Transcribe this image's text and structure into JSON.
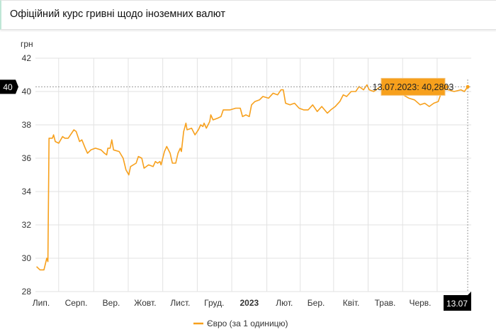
{
  "header": {
    "title": "Офіційний курс гривні щодо іноземних валют"
  },
  "chart_data": {
    "type": "line",
    "ylabel": "грн",
    "ylim": [
      28,
      42
    ],
    "yticks": [
      28,
      30,
      32,
      34,
      36,
      38,
      40,
      42
    ],
    "x_unit": "days since 2022-07-01",
    "xticks": [
      {
        "day": 0,
        "label": "Лип."
      },
      {
        "day": 31,
        "label": "Серп."
      },
      {
        "day": 62,
        "label": "Вер."
      },
      {
        "day": 92,
        "label": "Жовт."
      },
      {
        "day": 123,
        "label": "Лист."
      },
      {
        "day": 153,
        "label": "Груд."
      },
      {
        "day": 184,
        "label": "2023",
        "bold": true
      },
      {
        "day": 215,
        "label": "Лют."
      },
      {
        "day": 243,
        "label": "Бер."
      },
      {
        "day": 274,
        "label": "Квіт."
      },
      {
        "day": 304,
        "label": "Трав."
      },
      {
        "day": 335,
        "label": "Черв."
      }
    ],
    "series": [
      {
        "name": "Євро (за 1 одиницю)",
        "color": "#f7a01c",
        "points": [
          [
            -4,
            29.5
          ],
          [
            -1,
            29.3
          ],
          [
            2.5,
            29.3
          ],
          [
            5,
            30.0
          ],
          [
            6,
            29.8
          ],
          [
            7,
            37.2
          ],
          [
            10,
            37.2
          ],
          [
            11,
            37.4
          ],
          [
            12.5,
            37.0
          ],
          [
            15.6,
            36.9
          ],
          [
            19,
            37.3
          ],
          [
            21,
            37.2
          ],
          [
            24,
            37.2
          ],
          [
            26,
            37.4
          ],
          [
            29,
            37.7
          ],
          [
            31,
            37.6
          ],
          [
            34,
            37.0
          ],
          [
            36,
            37.1
          ],
          [
            39,
            36.6
          ],
          [
            41,
            36.3
          ],
          [
            44,
            36.5
          ],
          [
            48,
            36.6
          ],
          [
            53,
            36.5
          ],
          [
            56,
            36.3
          ],
          [
            58,
            36.2
          ],
          [
            59,
            36.6
          ],
          [
            61,
            36.6
          ],
          [
            62.5,
            37.1
          ],
          [
            64,
            36.5
          ],
          [
            69,
            36.4
          ],
          [
            72.5,
            36.0
          ],
          [
            75,
            35.3
          ],
          [
            77.5,
            35.0
          ],
          [
            79,
            35.5
          ],
          [
            84,
            35.7
          ],
          [
            86,
            36.1
          ],
          [
            89,
            36.0
          ],
          [
            91,
            35.4
          ],
          [
            95,
            35.6
          ],
          [
            99,
            35.5
          ],
          [
            101,
            35.8
          ],
          [
            103,
            35.7
          ],
          [
            105,
            35.8
          ],
          [
            106,
            35.6
          ],
          [
            109,
            36.4
          ],
          [
            111,
            36.7
          ],
          [
            114,
            36.3
          ],
          [
            116,
            35.7
          ],
          [
            119,
            35.7
          ],
          [
            121,
            36.3
          ],
          [
            123,
            36.6
          ],
          [
            124,
            36.4
          ],
          [
            126,
            37.6
          ],
          [
            128,
            38.1
          ],
          [
            129,
            37.7
          ],
          [
            133,
            37.8
          ],
          [
            136,
            37.4
          ],
          [
            139,
            37.7
          ],
          [
            141,
            38.0
          ],
          [
            143,
            37.9
          ],
          [
            144,
            38.1
          ],
          [
            146,
            37.8
          ],
          [
            149,
            38.2
          ],
          [
            150,
            38.6
          ],
          [
            152,
            38.3
          ],
          [
            156,
            38.4
          ],
          [
            159,
            38.5
          ],
          [
            161,
            38.9
          ],
          [
            167,
            38.9
          ],
          [
            172,
            39.0
          ],
          [
            176,
            39.0
          ],
          [
            178,
            38.5
          ],
          [
            181,
            38.6
          ],
          [
            184,
            38.5
          ],
          [
            186,
            39.2
          ],
          [
            189,
            39.4
          ],
          [
            193,
            39.5
          ],
          [
            196,
            39.7
          ],
          [
            201,
            39.6
          ],
          [
            205,
            39.9
          ],
          [
            209,
            39.8
          ],
          [
            212,
            40.1
          ],
          [
            214,
            40.1
          ],
          [
            216,
            39.3
          ],
          [
            220,
            39.2
          ],
          [
            224,
            39.3
          ],
          [
            228,
            39.0
          ],
          [
            232,
            38.9
          ],
          [
            236,
            38.9
          ],
          [
            240,
            39.2
          ],
          [
            244,
            38.8
          ],
          [
            248,
            39.1
          ],
          [
            253,
            38.7
          ],
          [
            256,
            38.9
          ],
          [
            260,
            39.1
          ],
          [
            264,
            39.4
          ],
          [
            267,
            39.8
          ],
          [
            270,
            39.7
          ],
          [
            274,
            40.0
          ],
          [
            278,
            40.0
          ],
          [
            281,
            40.3
          ],
          [
            285,
            40.1
          ],
          [
            288,
            40.4
          ],
          [
            290,
            40.1
          ],
          [
            294,
            40.0
          ],
          [
            298,
            40.2
          ],
          [
            302,
            40.4
          ],
          [
            314,
            40.3
          ],
          [
            320,
            39.8
          ],
          [
            325,
            39.6
          ],
          [
            330,
            39.5
          ],
          [
            335,
            39.2
          ],
          [
            339,
            39.3
          ],
          [
            343,
            39.1
          ],
          [
            347,
            39.3
          ],
          [
            351,
            39.4
          ],
          [
            353,
            39.8
          ],
          [
            355,
            40.2
          ],
          [
            365,
            40.0
          ],
          [
            371,
            40.1
          ],
          [
            374,
            40.0
          ],
          [
            377,
            40.2803
          ]
        ]
      }
    ],
    "legend": "bottom-center",
    "grid": true,
    "tooltip": {
      "text": "13.07.2023: 40,2803",
      "value": 40.2803,
      "day": 377
    },
    "crosshair": {
      "y_label": "40",
      "x_label": "13.07"
    }
  }
}
